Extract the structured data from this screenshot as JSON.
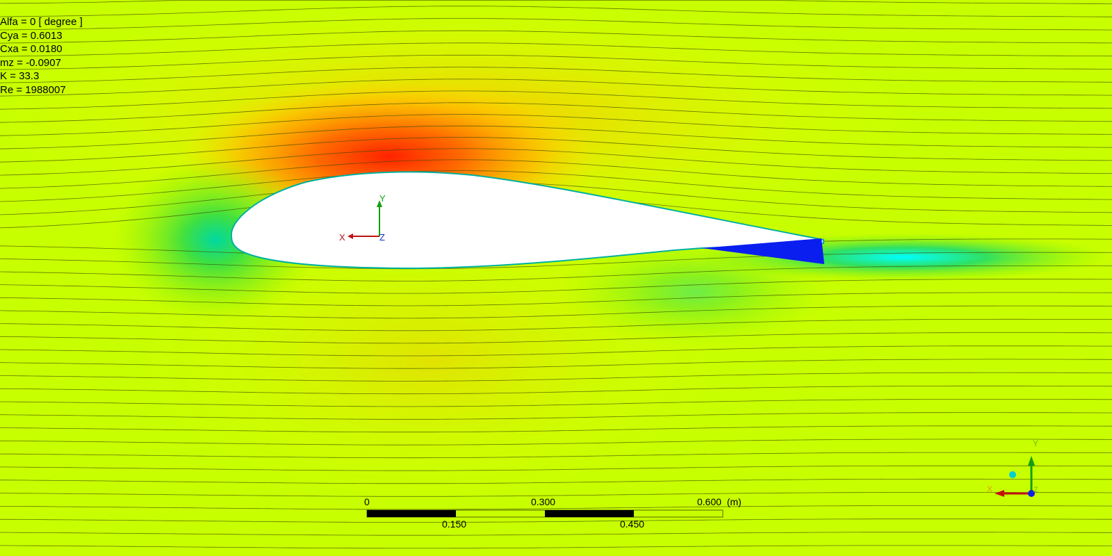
{
  "results": {
    "alfa": "Alfa = 0 [ degree ]",
    "cya": "Cya = 0.6013",
    "cxa": "Cxa = 0.0180",
    "mz": "mz = -0.0907",
    "k": "K = 33.3",
    "re": "Re = 1988007"
  },
  "scale_bar": {
    "top_labels": [
      "0",
      "0.300",
      "0.600  (m)"
    ],
    "bottom_labels": [
      "0.150",
      "0.450"
    ]
  },
  "axis_triad": {
    "x": "X",
    "y": "Y",
    "z": "Z"
  },
  "colors": {
    "background": "#c8ff00",
    "high": "#ff2a00",
    "mid": "#ffb000",
    "low": "#00e070",
    "lowest": "#0020ff",
    "surface": "#ffffff"
  }
}
